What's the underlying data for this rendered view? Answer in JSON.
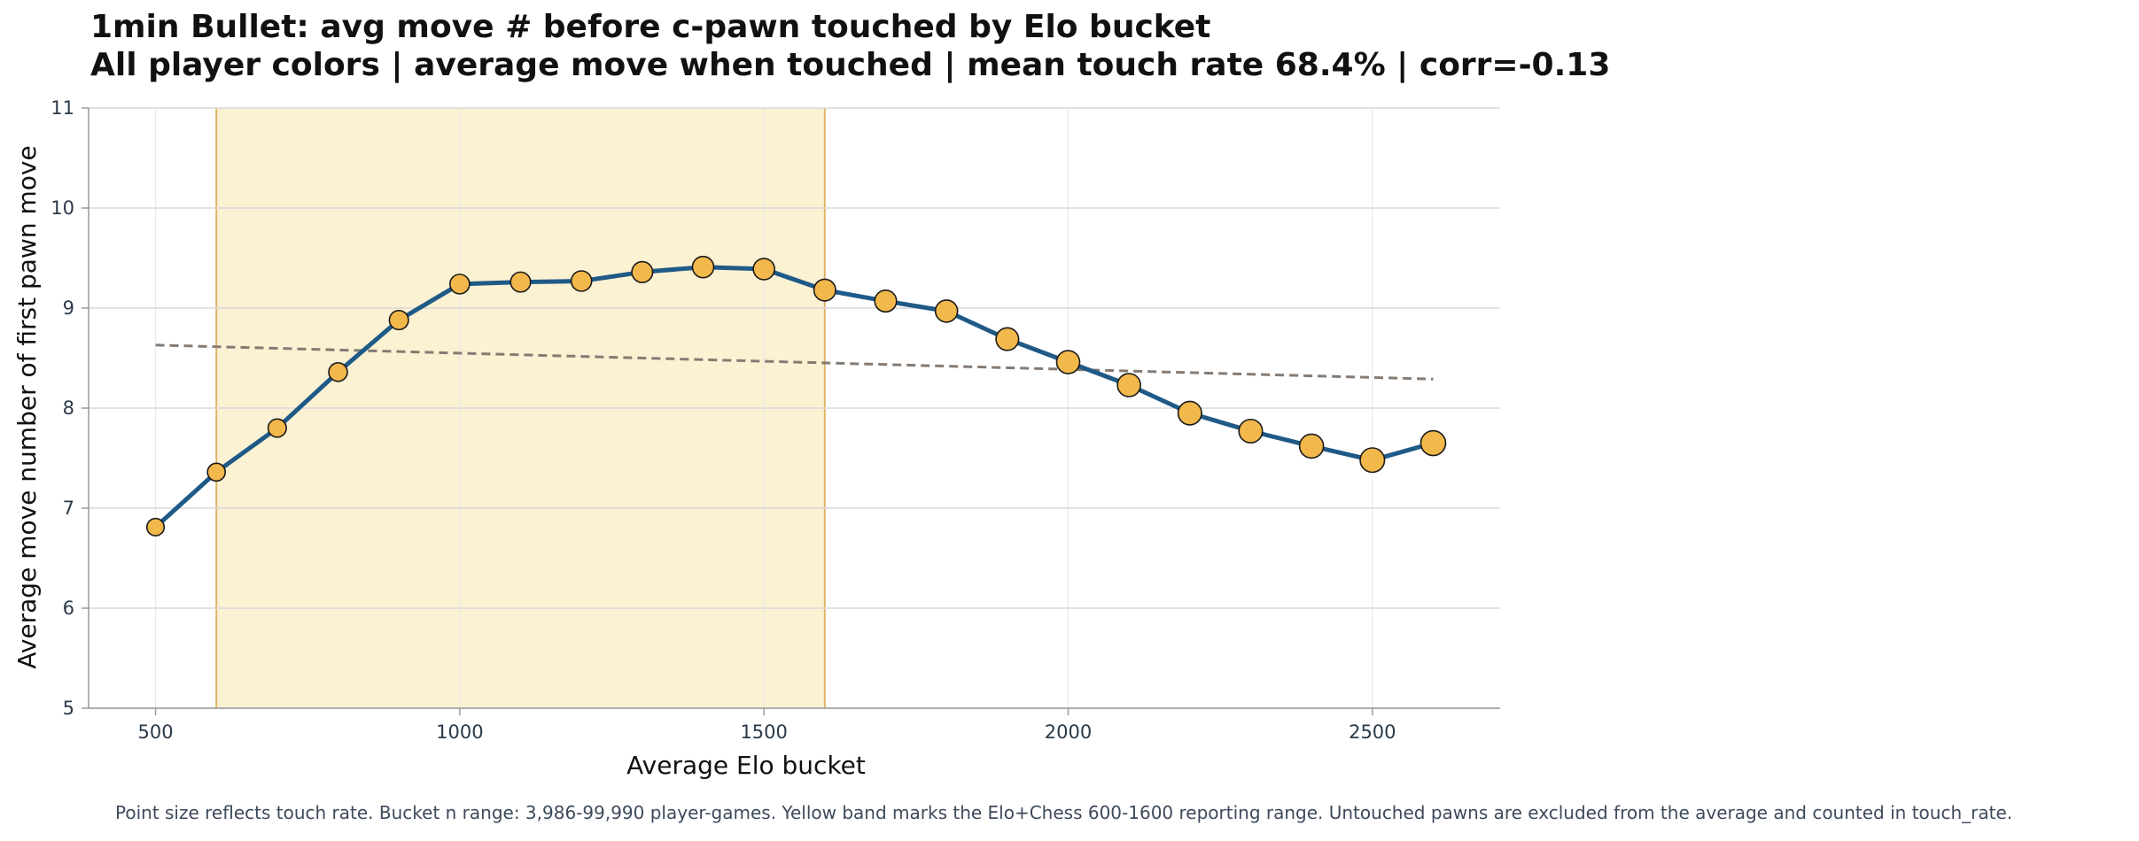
{
  "chart_data": {
    "type": "line",
    "title": "1min Bullet: avg move # before c-pawn touched by Elo bucket",
    "subtitle": "All player colors | average move when touched | mean touch rate 68.4% | corr=-0.13",
    "xlabel": "Average Elo bucket",
    "ylabel": "Average move number of first pawn move",
    "xlim": [
      390,
      2710
    ],
    "ylim": [
      5,
      11
    ],
    "x_ticks": [
      "500",
      "1000",
      "1500",
      "2000",
      "2500"
    ],
    "y_ticks": [
      "5",
      "6",
      "7",
      "8",
      "9",
      "10",
      "11"
    ],
    "grid": true,
    "band": {
      "from": 600,
      "to": 1600,
      "color": "#fbf1d3",
      "edge_color": "#e0b36a"
    },
    "series": [
      {
        "color": "#1f5a87",
        "marker_color": "#f2b84b",
        "x": [
          500,
          600,
          700,
          800,
          900,
          1000,
          1100,
          1200,
          1300,
          1400,
          1500,
          1600,
          1700,
          1800,
          1900,
          2000,
          2100,
          2200,
          2300,
          2400,
          2500,
          2600
        ],
        "y": [
          6.81,
          7.36,
          7.8,
          8.36,
          8.88,
          9.24,
          9.26,
          9.27,
          9.36,
          9.41,
          9.39,
          9.18,
          9.07,
          8.97,
          8.69,
          8.46,
          8.23,
          7.95,
          7.77,
          7.62,
          7.48,
          7.65
        ],
        "touch_rate_relative": [
          0.15,
          0.2,
          0.25,
          0.3,
          0.35,
          0.4,
          0.45,
          0.5,
          0.55,
          0.6,
          0.6,
          0.65,
          0.65,
          0.7,
          0.75,
          0.8,
          0.8,
          0.85,
          0.85,
          0.9,
          0.95,
          1.0
        ]
      }
    ],
    "trend": {
      "x": [
        500,
        2600
      ],
      "y": [
        8.63,
        8.29
      ],
      "color": "#857b73"
    }
  },
  "caption": "Point size reflects touch rate. Bucket n range: 3,986-99,990 player-games. Yellow band marks the Elo+Chess 600-1600 reporting range. Untouched pawns are excluded from the average and counted in touch_rate."
}
